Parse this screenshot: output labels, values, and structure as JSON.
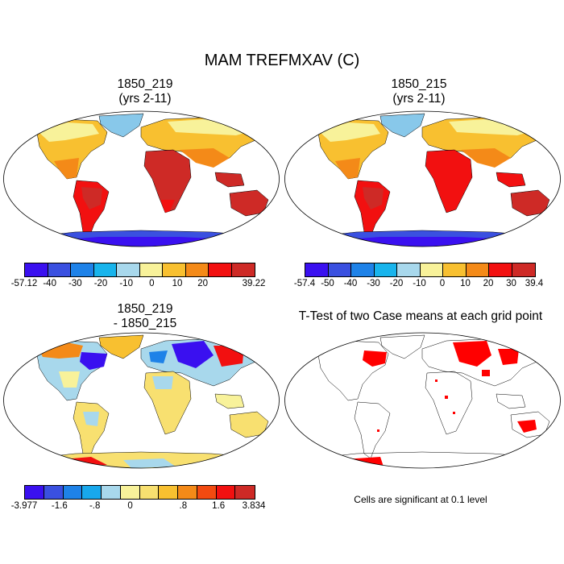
{
  "title": "MAM TREFMXAV (C)",
  "panels": [
    {
      "id": "p1",
      "title_line1": "1850_219",
      "title_line2": "(yrs 2-11)"
    },
    {
      "id": "p2",
      "title_line1": "1850_215",
      "title_line2": "(yrs 2-11)"
    },
    {
      "id": "p3",
      "title_line1": "1850_219",
      "title_line2": "- 1850_215"
    },
    {
      "id": "p4",
      "title_line1": "T-Test of two Case means at each grid point",
      "title_line2": ""
    }
  ],
  "footnote": "Cells are significant at 0.1 level",
  "colorbars": [
    {
      "id": "cbar1",
      "colors": [
        "#3a10f0",
        "#3a50e0",
        "#1e82e8",
        "#18b4ec",
        "#a8d8ec",
        "#f8f29a",
        "#f8c030",
        "#f48a18",
        "#f21010",
        "#ce2a26"
      ],
      "labels": [
        "-57.12",
        "-40",
        "-30",
        "-20",
        "-10",
        "0",
        "10",
        "20",
        "",
        "39.22"
      ]
    },
    {
      "id": "cbar2",
      "colors": [
        "#3a10f0",
        "#3a50e0",
        "#1e82e8",
        "#18b4ec",
        "#a8d8ec",
        "#f8f29a",
        "#f8c030",
        "#f48a18",
        "#f21010",
        "#ce2a26"
      ],
      "labels": [
        "-57.4",
        "-50",
        "-40",
        "-30",
        "-20",
        "-10",
        "0",
        "10",
        "20",
        "30",
        "39.4"
      ]
    },
    {
      "id": "cbar3",
      "colors": [
        "#3a10f0",
        "#3a50e0",
        "#1e82e8",
        "#18a8ec",
        "#a8d8ec",
        "#f8f29a",
        "#f8e070",
        "#f8c030",
        "#f48a18",
        "#f24a10",
        "#f21010",
        "#ce2a26"
      ],
      "labels": [
        "-3.977",
        "",
        "-1.6",
        "",
        "-.8",
        "",
        "0",
        "",
        "",
        ".8",
        "",
        "1.6",
        "",
        "3.834"
      ]
    }
  ],
  "palette": {
    "ocean": "#ffffff",
    "coast": "#000000",
    "significant": "#ff0000"
  }
}
